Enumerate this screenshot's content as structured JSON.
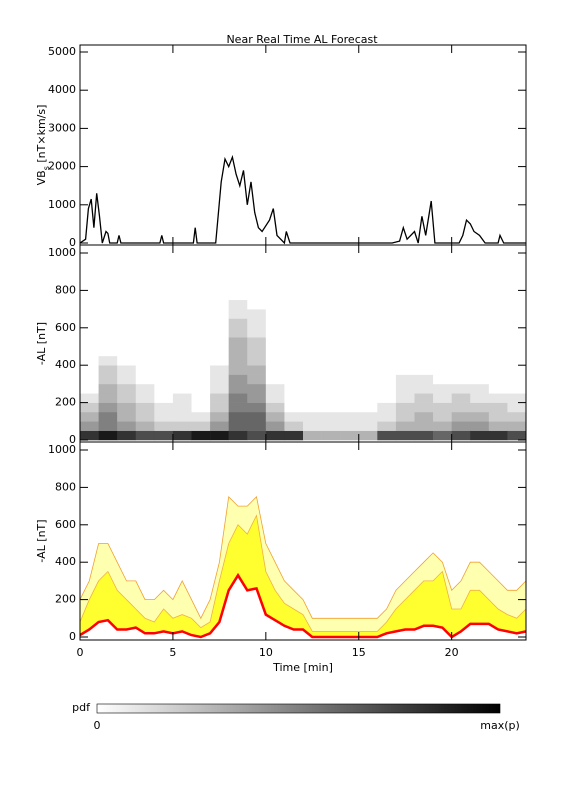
{
  "title": "Near Real Time AL Forecast",
  "chart_data": [
    {
      "type": "line",
      "ylabel": {
        "main": "VB",
        "sub": "s",
        "rest": " [nT×km/s]"
      },
      "x": [
        0,
        0.3,
        0.45,
        0.6,
        0.75,
        0.9,
        1.05,
        1.2,
        1.4,
        1.5,
        1.6,
        2.0,
        2.1,
        2.2,
        4.3,
        4.4,
        4.5,
        6.1,
        6.2,
        6.3,
        7.3,
        7.6,
        7.8,
        8.0,
        8.2,
        8.4,
        8.6,
        8.8,
        9.0,
        9.2,
        9.4,
        9.6,
        9.8,
        10.2,
        10.4,
        10.6,
        11.0,
        11.1,
        11.3,
        16.8,
        17.2,
        17.4,
        17.6,
        18.0,
        18.2,
        18.4,
        18.6,
        18.8,
        18.9,
        19.1,
        20.4,
        20.6,
        20.8,
        21.0,
        21.2,
        21.5,
        21.8,
        22.5,
        22.6,
        22.8,
        24
      ],
      "series": [
        {
          "color": "#000000",
          "values": [
            0,
            100,
            900,
            1150,
            400,
            1300,
            700,
            0,
            300,
            250,
            0,
            0,
            200,
            0,
            0,
            200,
            0,
            0,
            400,
            0,
            0,
            1600,
            2200,
            2000,
            2250,
            1800,
            1500,
            1900,
            1000,
            1600,
            800,
            400,
            300,
            600,
            900,
            200,
            0,
            300,
            0,
            0,
            50,
            400,
            100,
            300,
            0,
            700,
            200,
            800,
            1100,
            0,
            0,
            200,
            600,
            500,
            300,
            200,
            0,
            0,
            200,
            0,
            0
          ]
        }
      ],
      "xlim": [
        0,
        24
      ],
      "xticks": [
        0,
        5,
        10,
        15,
        20
      ],
      "ylim": [
        0,
        5000
      ],
      "yticks": [
        0,
        1000,
        2000,
        3000,
        4000,
        5000
      ]
    },
    {
      "type": "heatmap",
      "ylabel": {
        "main": "-AL [nT]"
      },
      "x_edges": [
        0,
        1,
        2,
        3,
        4,
        5,
        6,
        7,
        8,
        9,
        10,
        11,
        12,
        13,
        14,
        15,
        16,
        17,
        18,
        19,
        20,
        21,
        22,
        23,
        24
      ],
      "y_edges": [
        0,
        50,
        100,
        150,
        200,
        250,
        300,
        350,
        400,
        450,
        500,
        550,
        600,
        650,
        700,
        750,
        800
      ],
      "pdf": [
        [
          0.8,
          0.4,
          0.3,
          0.2,
          0.1,
          0,
          0,
          0,
          0,
          0,
          0,
          0,
          0,
          0,
          0,
          0
        ],
        [
          0.9,
          0.5,
          0.5,
          0.4,
          0.3,
          0.3,
          0.2,
          0.2,
          0.1,
          0,
          0,
          0,
          0,
          0,
          0,
          0
        ],
        [
          0.8,
          0.4,
          0.3,
          0.3,
          0.2,
          0.2,
          0.1,
          0.1,
          0,
          0,
          0,
          0,
          0,
          0,
          0,
          0
        ],
        [
          0.7,
          0.3,
          0.2,
          0.2,
          0.1,
          0.1,
          0,
          0,
          0,
          0,
          0,
          0,
          0,
          0,
          0,
          0
        ],
        [
          0.7,
          0.2,
          0.1,
          0.1,
          0,
          0,
          0,
          0,
          0,
          0,
          0,
          0,
          0,
          0,
          0,
          0
        ],
        [
          0.8,
          0.2,
          0.1,
          0.1,
          0.1,
          0,
          0,
          0,
          0,
          0,
          0,
          0,
          0,
          0,
          0,
          0
        ],
        [
          0.9,
          0.2,
          0.1,
          0,
          0,
          0,
          0,
          0,
          0,
          0,
          0,
          0,
          0,
          0,
          0,
          0
        ],
        [
          0.9,
          0.4,
          0.3,
          0.2,
          0.2,
          0.1,
          0.1,
          0.1,
          0,
          0,
          0,
          0,
          0,
          0,
          0,
          0
        ],
        [
          0.8,
          0.6,
          0.6,
          0.5,
          0.5,
          0.4,
          0.4,
          0.3,
          0.3,
          0.3,
          0.3,
          0.2,
          0.2,
          0.1,
          0.1,
          0
        ],
        [
          0.7,
          0.6,
          0.6,
          0.5,
          0.4,
          0.4,
          0.3,
          0.3,
          0.2,
          0.2,
          0.2,
          0.1,
          0.1,
          0.1,
          0,
          0
        ],
        [
          0.8,
          0.4,
          0.3,
          0.2,
          0.1,
          0.1,
          0,
          0,
          0,
          0,
          0,
          0,
          0,
          0,
          0,
          0
        ],
        [
          0.8,
          0.2,
          0.1,
          0,
          0,
          0,
          0,
          0,
          0,
          0,
          0,
          0,
          0,
          0,
          0,
          0
        ],
        [
          0.3,
          0.1,
          0.1,
          0,
          0,
          0,
          0,
          0,
          0,
          0,
          0,
          0,
          0,
          0,
          0,
          0
        ],
        [
          0.3,
          0.1,
          0.1,
          0,
          0,
          0,
          0,
          0,
          0,
          0,
          0,
          0,
          0,
          0,
          0,
          0
        ],
        [
          0.3,
          0.1,
          0.1,
          0,
          0,
          0,
          0,
          0,
          0,
          0,
          0,
          0,
          0,
          0,
          0,
          0
        ],
        [
          0.3,
          0.1,
          0.1,
          0,
          0,
          0,
          0,
          0,
          0,
          0,
          0,
          0,
          0,
          0,
          0,
          0
        ],
        [
          0.7,
          0.2,
          0.1,
          0.1,
          0,
          0,
          0,
          0,
          0,
          0,
          0,
          0,
          0,
          0,
          0,
          0
        ],
        [
          0.7,
          0.3,
          0.2,
          0.2,
          0.1,
          0.1,
          0.1,
          0,
          0,
          0,
          0,
          0,
          0,
          0,
          0,
          0
        ],
        [
          0.7,
          0.3,
          0.3,
          0.2,
          0.2,
          0.1,
          0.1,
          0,
          0,
          0,
          0,
          0,
          0,
          0,
          0,
          0
        ],
        [
          0.6,
          0.3,
          0.2,
          0.2,
          0.1,
          0.1,
          0,
          0,
          0,
          0,
          0,
          0,
          0,
          0,
          0,
          0
        ],
        [
          0.7,
          0.4,
          0.3,
          0.2,
          0.2,
          0.1,
          0,
          0,
          0,
          0,
          0,
          0,
          0,
          0,
          0,
          0
        ],
        [
          0.8,
          0.4,
          0.3,
          0.2,
          0.1,
          0.1,
          0,
          0,
          0,
          0,
          0,
          0,
          0,
          0,
          0,
          0
        ],
        [
          0.8,
          0.3,
          0.2,
          0.2,
          0.1,
          0,
          0,
          0,
          0,
          0,
          0,
          0,
          0,
          0,
          0,
          0
        ],
        [
          0.7,
          0.3,
          0.2,
          0.1,
          0.1,
          0,
          0,
          0,
          0,
          0,
          0,
          0,
          0,
          0,
          0,
          0
        ]
      ],
      "colorbar": {
        "label": "pdf",
        "min_label": "0",
        "max_label": "max(p)"
      },
      "xlim": [
        0,
        24
      ],
      "xticks": [
        0,
        5,
        10,
        15,
        20
      ],
      "ylim": [
        0,
        1000
      ],
      "yticks": [
        0,
        200,
        400,
        600,
        800,
        1000
      ]
    },
    {
      "type": "band",
      "ylabel": {
        "main": "-AL [nT]"
      },
      "xlabel": "Time [min]",
      "x": [
        0,
        0.5,
        1,
        1.5,
        2,
        2.5,
        3,
        3.5,
        4,
        4.5,
        5,
        5.5,
        6,
        6.5,
        7,
        7.5,
        8,
        8.5,
        9,
        9.5,
        10,
        10.5,
        11,
        11.5,
        12,
        12.5,
        13,
        13.5,
        14,
        14.5,
        15,
        15.5,
        16,
        16.5,
        17,
        17.5,
        18,
        18.5,
        19,
        19.5,
        20,
        20.5,
        21,
        21.5,
        22,
        22.5,
        23,
        23.5,
        24
      ],
      "series": [
        {
          "color": "#f0a030",
          "fill": "#ffffb0",
          "values": [
            200,
            300,
            500,
            500,
            400,
            300,
            300,
            200,
            200,
            250,
            200,
            300,
            200,
            100,
            200,
            400,
            750,
            700,
            700,
            750,
            500,
            400,
            300,
            250,
            200,
            100,
            100,
            100,
            100,
            100,
            100,
            100,
            100,
            150,
            250,
            300,
            350,
            400,
            450,
            400,
            250,
            300,
            400,
            400,
            350,
            300,
            250,
            250,
            300
          ]
        },
        {
          "color": "#f0b040",
          "fill": "#ffff30",
          "values": [
            80,
            200,
            300,
            350,
            250,
            200,
            150,
            100,
            80,
            150,
            100,
            120,
            100,
            50,
            80,
            300,
            500,
            600,
            550,
            650,
            350,
            250,
            180,
            150,
            120,
            30,
            30,
            30,
            30,
            30,
            30,
            30,
            30,
            80,
            150,
            200,
            250,
            300,
            300,
            350,
            150,
            150,
            250,
            250,
            200,
            150,
            120,
            100,
            150
          ]
        },
        {
          "color": "#ff0000",
          "fill": "#ffffff",
          "values": [
            10,
            40,
            80,
            90,
            40,
            40,
            50,
            20,
            20,
            30,
            20,
            30,
            10,
            0,
            20,
            80,
            250,
            330,
            250,
            260,
            120,
            90,
            60,
            40,
            40,
            0,
            0,
            0,
            0,
            0,
            0,
            0,
            0,
            20,
            30,
            40,
            40,
            60,
            60,
            50,
            0,
            30,
            70,
            70,
            70,
            40,
            30,
            20,
            30
          ]
        }
      ],
      "xlim": [
        0,
        24
      ],
      "xticks": [
        0,
        5,
        10,
        15,
        20
      ],
      "ylim": [
        0,
        1000
      ],
      "yticks": [
        0,
        200,
        400,
        600,
        800,
        1000
      ]
    }
  ]
}
